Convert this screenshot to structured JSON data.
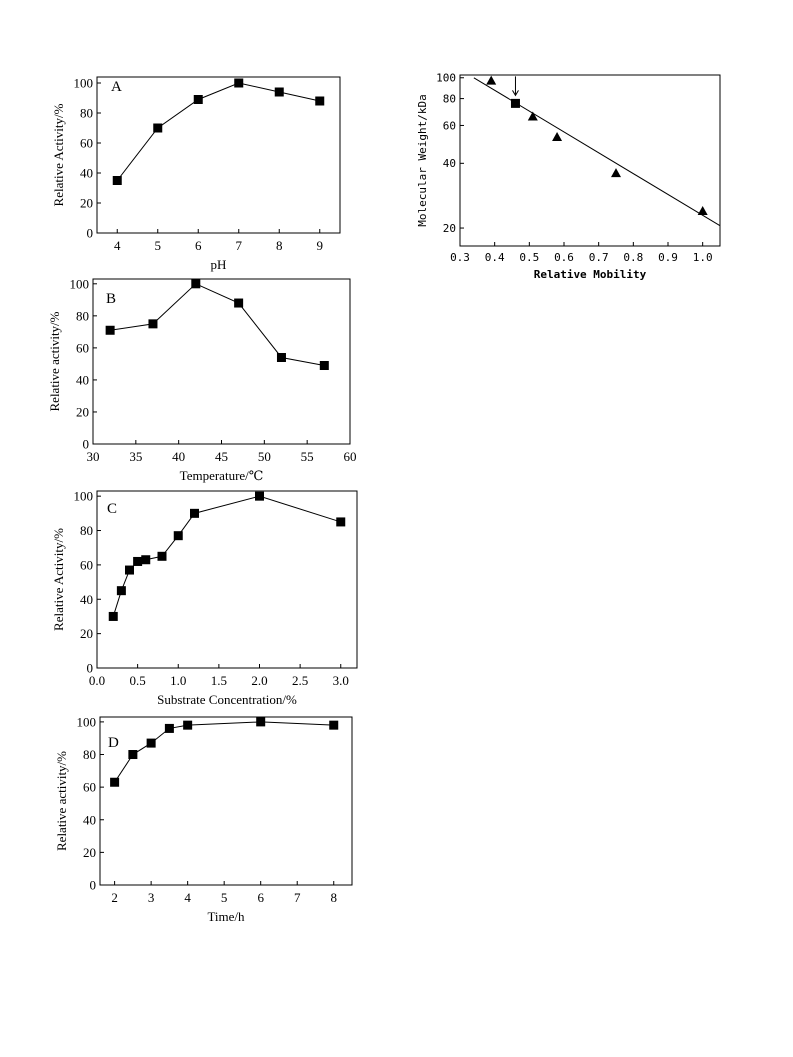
{
  "chart_data": [
    {
      "id": "A",
      "type": "line",
      "panel_label": "A",
      "xlabel": "pH",
      "ylabel": "Relative Activity/%",
      "xlim": [
        3.5,
        9.5
      ],
      "ylim": [
        0,
        104
      ],
      "x_ticks": [
        4,
        5,
        6,
        7,
        8,
        9
      ],
      "y_ticks": [
        0,
        20,
        40,
        60,
        80,
        100
      ],
      "tick_decimals": 0,
      "marker": "square",
      "connect": true,
      "series": [
        {
          "x": [
            4,
            5,
            6,
            7,
            8,
            9
          ],
          "y": [
            35,
            70,
            89,
            100,
            94,
            88
          ]
        }
      ]
    },
    {
      "id": "B",
      "type": "line",
      "panel_label": "B",
      "xlabel": "Temperature/℃",
      "ylabel": "Relative activity/%",
      "xlim": [
        30,
        60
      ],
      "ylim": [
        0,
        103
      ],
      "x_ticks": [
        30,
        35,
        40,
        45,
        50,
        55,
        60
      ],
      "y_ticks": [
        0,
        20,
        40,
        60,
        80,
        100
      ],
      "tick_decimals": 0,
      "marker": "square",
      "connect": true,
      "series": [
        {
          "x": [
            32,
            37,
            42,
            47,
            52,
            57
          ],
          "y": [
            71,
            75,
            100,
            88,
            54,
            49
          ]
        }
      ]
    },
    {
      "id": "C",
      "type": "line",
      "panel_label": "C",
      "xlabel": "Substrate Concentration/%",
      "ylabel": "Relative Activity/%",
      "xlim": [
        0,
        3.2
      ],
      "ylim": [
        0,
        103
      ],
      "x_ticks": [
        0,
        0.5,
        1.0,
        1.5,
        2.0,
        2.5,
        3.0
      ],
      "y_ticks": [
        0,
        20,
        40,
        60,
        80,
        100
      ],
      "tick_decimals": 1,
      "marker": "square",
      "connect": true,
      "series": [
        {
          "x": [
            0.2,
            0.3,
            0.4,
            0.5,
            0.6,
            0.8,
            1.0,
            1.2,
            2.0,
            3.0
          ],
          "y": [
            30,
            45,
            57,
            62,
            63,
            65,
            77,
            90,
            100,
            85
          ]
        }
      ]
    },
    {
      "id": "D",
      "type": "line",
      "panel_label": "D",
      "xlabel": "Time/h",
      "ylabel": "Relative activity/%",
      "xlim": [
        1.6,
        8.5
      ],
      "ylim": [
        0,
        103
      ],
      "x_ticks": [
        2,
        3,
        4,
        5,
        6,
        7,
        8
      ],
      "y_ticks": [
        0,
        20,
        40,
        60,
        80,
        100
      ],
      "tick_decimals": 0,
      "marker": "square",
      "connect": true,
      "series": [
        {
          "x": [
            2,
            2.5,
            3,
            3.5,
            4,
            6,
            8
          ],
          "y": [
            63,
            80,
            87,
            96,
            98,
            100,
            98
          ]
        }
      ]
    },
    {
      "id": "E",
      "type": "scatter",
      "xlabel": "Relative Mobility",
      "ylabel": "Molecular Weight/kDa",
      "y_scale": "log",
      "xlim": [
        0.3,
        1.05
      ],
      "ylim": [
        16.5,
        103
      ],
      "x_ticks": [
        0.3,
        0.4,
        0.5,
        0.6,
        0.7,
        0.8,
        0.9,
        1.0
      ],
      "y_ticks": [
        20,
        40,
        60,
        80,
        100
      ],
      "tick_decimals": 1,
      "marker": "triangle",
      "connect": false,
      "series": [
        {
          "x": [
            0.39,
            0.51,
            0.58,
            0.75,
            1.0
          ],
          "y": [
            97,
            66,
            53,
            36,
            24
          ]
        }
      ],
      "highlight": {
        "marker": "square",
        "x": 0.46,
        "y": 76,
        "arrow": true
      },
      "fit_line": {
        "x": [
          0.34,
          1.05
        ],
        "y": [
          100,
          20.5
        ]
      }
    }
  ]
}
